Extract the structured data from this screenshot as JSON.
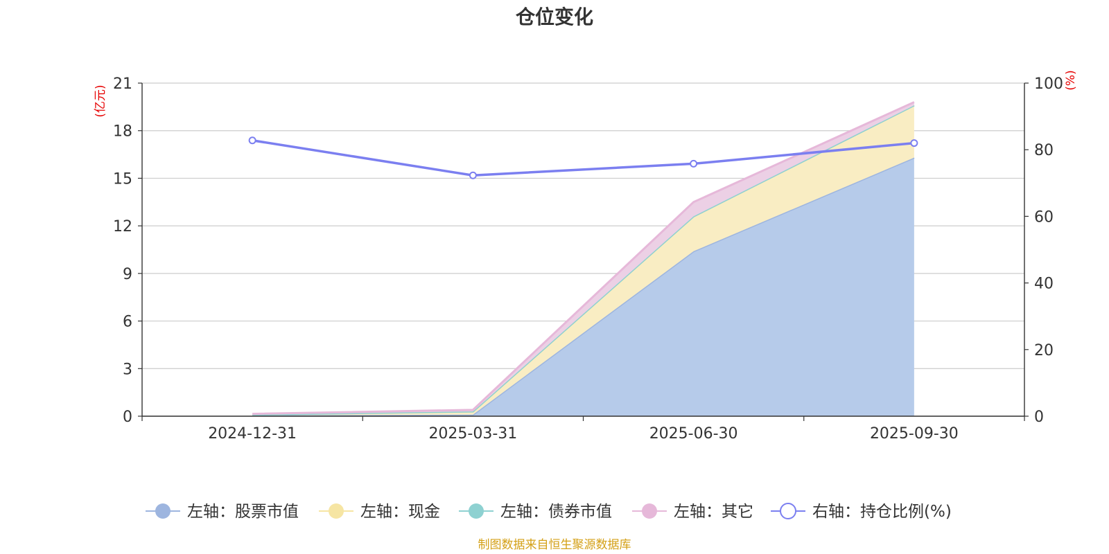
{
  "chart_data": {
    "type": "area",
    "title": "仓位变化",
    "source": "制图数据来自恒生聚源数据库",
    "categories": [
      "2024-12-31",
      "2025-03-31",
      "2025-06-30",
      "2025-09-30"
    ],
    "left_axis": {
      "unit": "(亿元)",
      "range": [
        0,
        21
      ],
      "ticks": [
        "0",
        "3",
        "6",
        "9",
        "12",
        "15",
        "18",
        "21"
      ]
    },
    "right_axis": {
      "unit": "(%)",
      "range": [
        0,
        100
      ],
      "ticks": [
        "0",
        "20",
        "40",
        "60",
        "80",
        "100"
      ]
    },
    "stacked_series": [
      {
        "name": "左轴：股票市值",
        "color": "#9db5df",
        "fill": "#b6cbea",
        "values": [
          0.05,
          0.1,
          10.4,
          16.3
        ]
      },
      {
        "name": "左轴：现金",
        "color": "#f6e5a3",
        "fill": "#f9edc3",
        "values": [
          0.05,
          0.2,
          2.2,
          3.3
        ]
      },
      {
        "name": "左轴：债券市值",
        "color": "#8ed1d1",
        "fill": "#bfe5e5",
        "values": [
          0.0,
          0.0,
          0.0,
          0.0
        ]
      },
      {
        "name": "左轴：其它",
        "color": "#e6b8d9",
        "fill": "#ecd0e5",
        "values": [
          0.05,
          0.1,
          0.9,
          0.2
        ]
      }
    ],
    "line_series": {
      "name": "右轴：持仓比例(%)",
      "color": "#7b7ff0",
      "values": [
        82.8,
        72.3,
        75.8,
        82.0
      ]
    }
  }
}
